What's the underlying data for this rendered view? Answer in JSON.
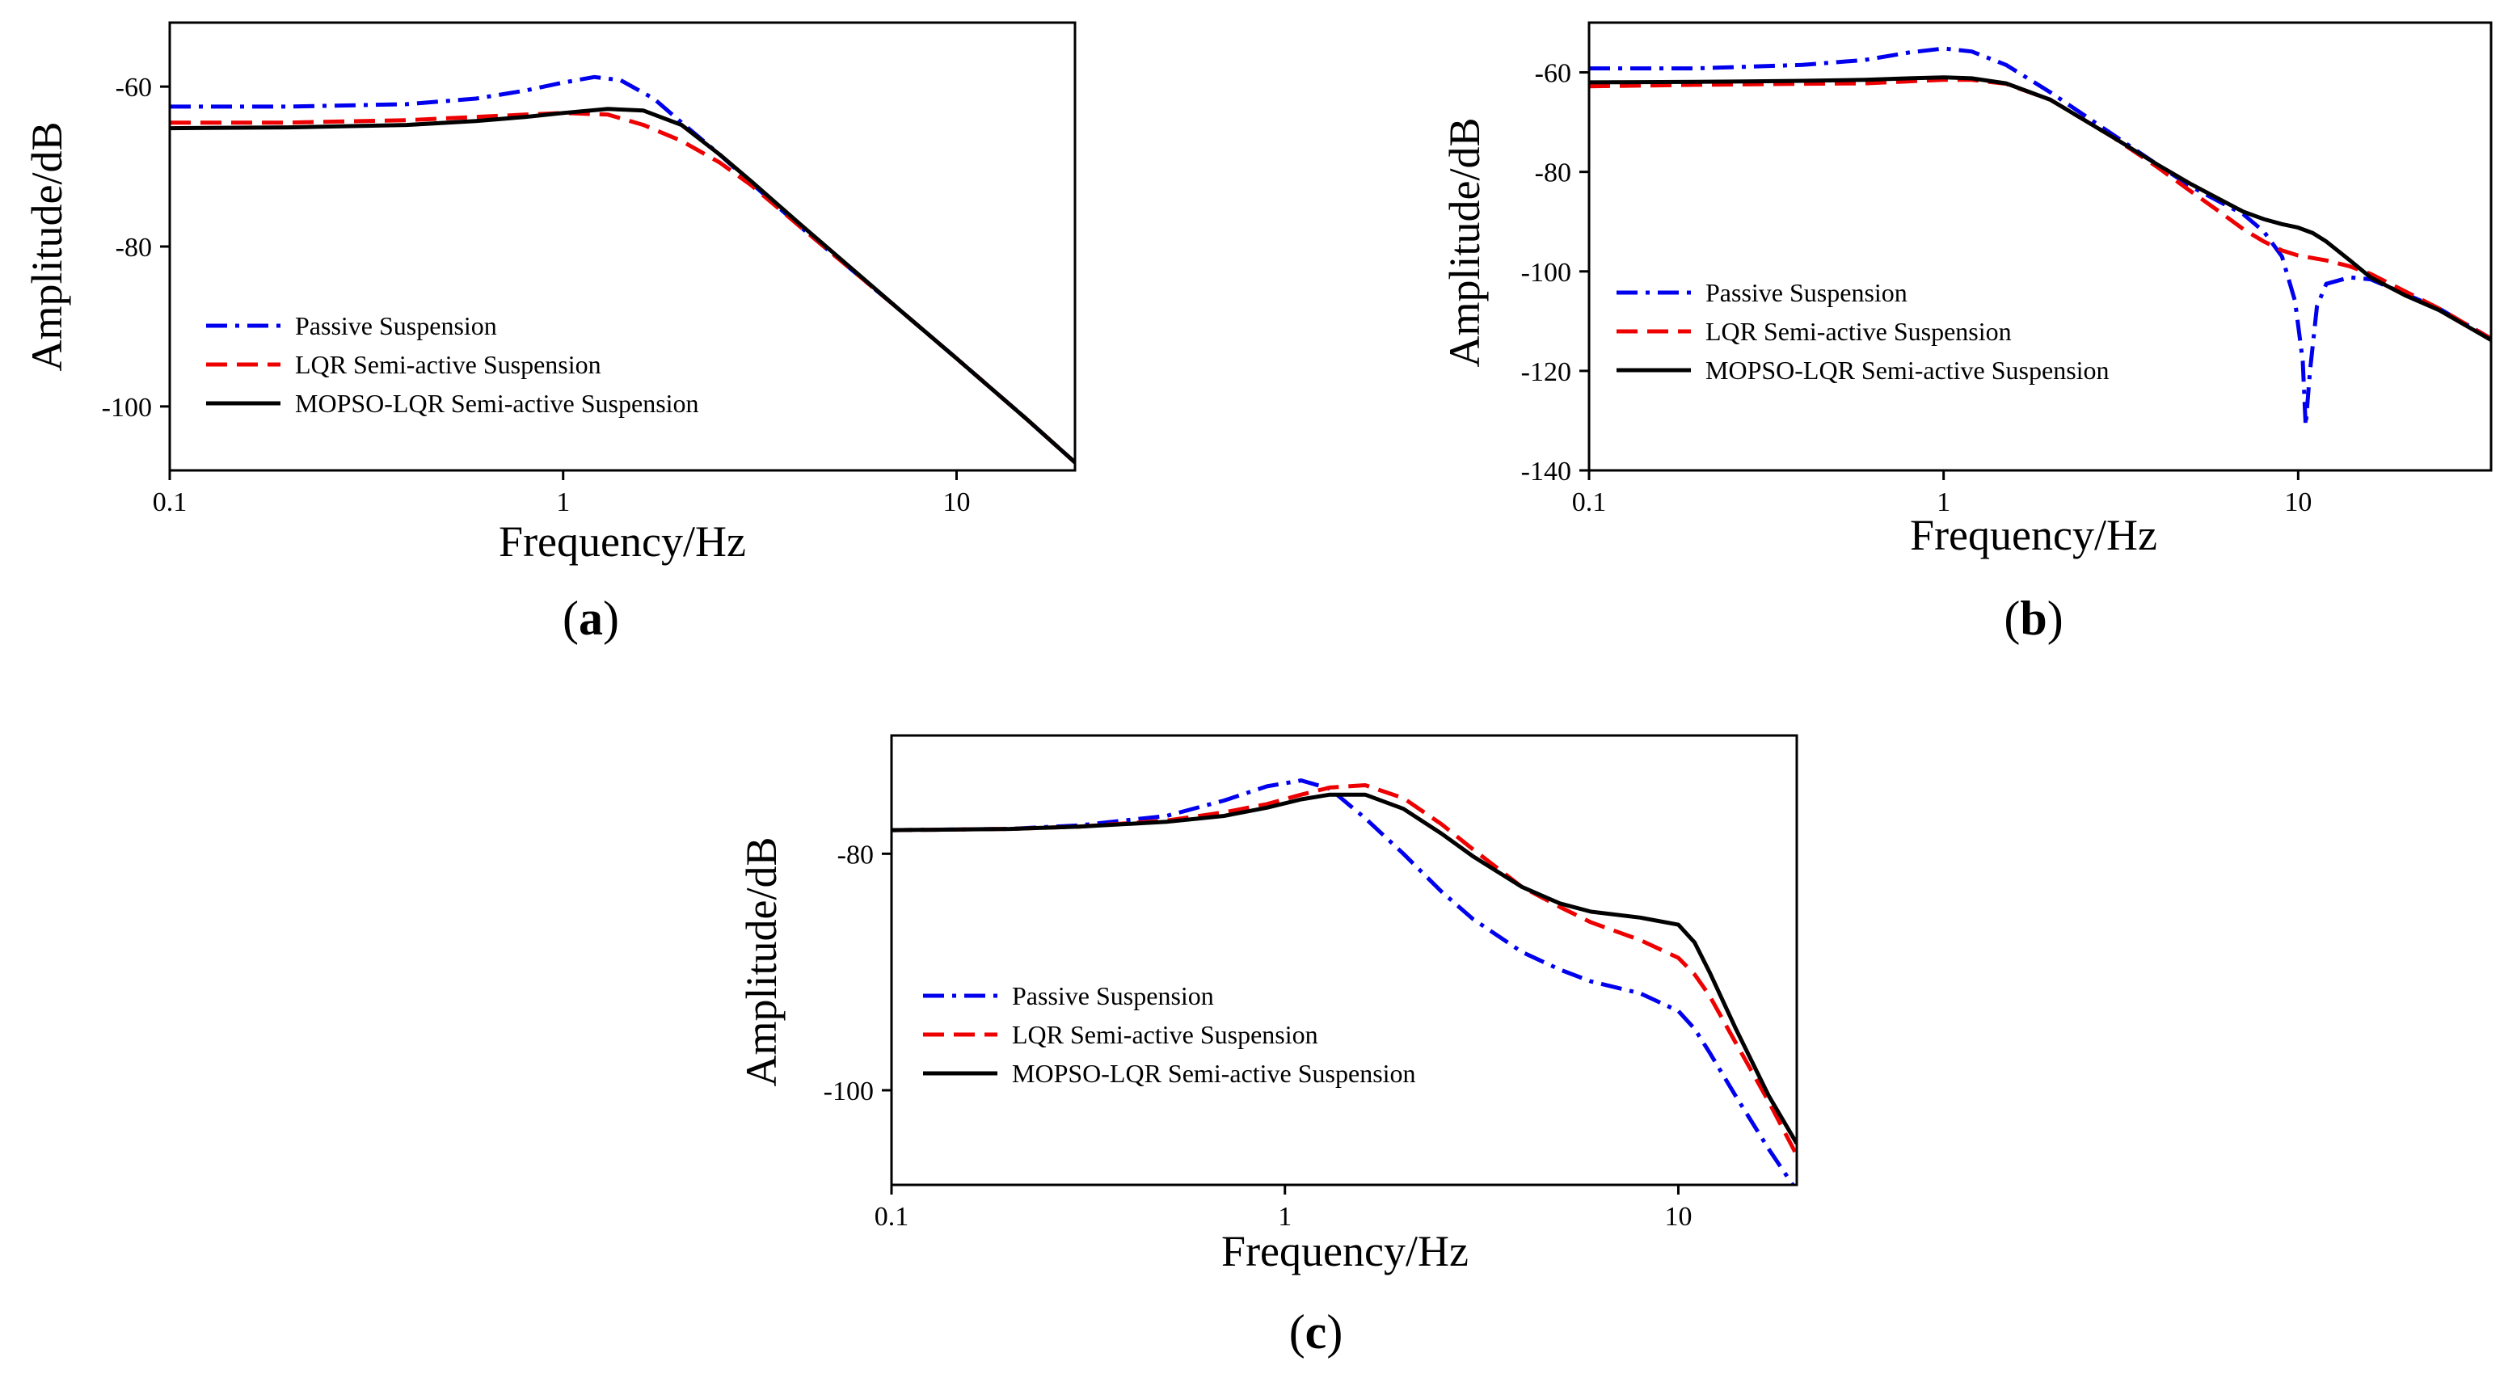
{
  "chart_data": [
    {
      "type": "line",
      "panel_label": "a",
      "xscale": "log",
      "xlim": [
        0.1,
        20
      ],
      "ylim": [
        -108,
        -52
      ],
      "xlabel": "Frequency/Hz",
      "ylabel": "Amplitude/dB",
      "xticks": [
        0.1,
        1,
        10
      ],
      "xtick_labels": [
        "0.1",
        "1",
        "10"
      ],
      "yticks": [
        -100,
        -80,
        -60
      ],
      "ytick_labels": [
        "-100",
        "-80",
        "-60"
      ],
      "legend_position": "bottom-left",
      "series": [
        {
          "name": "Passive Suspension",
          "color": "#0000ee",
          "dash": "dashdot",
          "x": [
            0.1,
            0.2,
            0.4,
            0.6,
            0.8,
            1.0,
            1.2,
            1.4,
            1.7,
            2,
            2.5,
            3,
            4,
            5,
            7,
            10,
            15,
            20
          ],
          "y": [
            -62.5,
            -62.5,
            -62.2,
            -61.5,
            -60.5,
            -59.5,
            -58.8,
            -59.2,
            -61.5,
            -64.5,
            -68.5,
            -72,
            -77.5,
            -81.5,
            -87.5,
            -94,
            -101.5,
            -107
          ]
        },
        {
          "name": "LQR Semi-active Suspension",
          "color": "#ee0000",
          "dash": "dash",
          "x": [
            0.1,
            0.2,
            0.4,
            0.6,
            0.8,
            1.0,
            1.3,
            1.6,
            2,
            2.5,
            3,
            4,
            5,
            7,
            10,
            15,
            20
          ],
          "y": [
            -64.5,
            -64.5,
            -64.2,
            -63.8,
            -63.5,
            -63.3,
            -63.5,
            -64.8,
            -66.8,
            -69.5,
            -72.3,
            -77.5,
            -81.5,
            -87.5,
            -94,
            -101.5,
            -107
          ]
        },
        {
          "name": "MOPSO-LQR Semi-active Suspension",
          "color": "#000000",
          "dash": "solid",
          "x": [
            0.1,
            0.2,
            0.4,
            0.6,
            0.8,
            1.0,
            1.3,
            1.6,
            2,
            2.5,
            3,
            4,
            5,
            7,
            10,
            15,
            20
          ],
          "y": [
            -65.2,
            -65.1,
            -64.8,
            -64.3,
            -63.8,
            -63.3,
            -62.8,
            -63,
            -64.8,
            -68.5,
            -71.8,
            -77.2,
            -81.3,
            -87.5,
            -94,
            -101.5,
            -107
          ]
        }
      ]
    },
    {
      "type": "line",
      "panel_label": "b",
      "xscale": "log",
      "xlim": [
        0.1,
        35
      ],
      "ylim": [
        -140,
        -50
      ],
      "xlabel": "Frequency/Hz",
      "ylabel": "Amplitude/dB",
      "xticks": [
        0.1,
        1,
        10
      ],
      "xtick_labels": [
        "0.1",
        "1",
        "10"
      ],
      "yticks": [
        -140,
        -120,
        -100,
        -80,
        -60
      ],
      "ytick_labels": [
        "-140",
        "-120",
        "-100",
        "-80",
        "-60"
      ],
      "legend_position": "bottom-left",
      "series": [
        {
          "name": "Passive Suspension",
          "color": "#0000ee",
          "dash": "dashdot",
          "x": [
            0.1,
            0.2,
            0.4,
            0.6,
            0.8,
            1.0,
            1.2,
            1.5,
            2,
            3,
            4,
            5,
            6,
            7,
            8,
            9,
            9.8,
            10.3,
            10.5,
            10.8,
            11.3,
            12,
            14,
            16,
            20,
            25,
            35
          ],
          "y": [
            -59.2,
            -59.2,
            -58.5,
            -57.5,
            -56,
            -55.2,
            -55.8,
            -58.5,
            -64,
            -72.5,
            -78.5,
            -83,
            -86,
            -88.5,
            -92,
            -97,
            -106,
            -118,
            -131,
            -120,
            -107,
            -102.5,
            -101.2,
            -101.6,
            -104.5,
            -107.5,
            -113.5
          ]
        },
        {
          "name": "LQR Semi-active Suspension",
          "color": "#ee0000",
          "dash": "dash",
          "x": [
            0.1,
            0.2,
            0.4,
            0.6,
            0.8,
            1.0,
            1.2,
            1.5,
            2,
            3,
            4,
            5,
            6,
            7,
            8,
            9,
            10,
            12,
            14,
            16,
            20,
            25,
            35
          ],
          "y": [
            -62.8,
            -62.5,
            -62.3,
            -62.2,
            -61.8,
            -61.5,
            -61.5,
            -62.3,
            -65.5,
            -73,
            -79,
            -84,
            -88,
            -91.5,
            -94,
            -95.8,
            -96.8,
            -97.8,
            -99,
            -100.5,
            -104,
            -107.5,
            -113.5
          ]
        },
        {
          "name": "MOPSO-LQR Semi-active Suspension",
          "color": "#000000",
          "dash": "solid",
          "x": [
            0.1,
            0.2,
            0.4,
            0.6,
            0.8,
            1.0,
            1.2,
            1.5,
            2,
            3,
            4,
            5,
            6,
            7,
            8,
            9,
            10,
            11,
            12,
            14,
            16,
            20,
            25,
            35
          ],
          "y": [
            -62,
            -61.9,
            -61.7,
            -61.5,
            -61.2,
            -61,
            -61.2,
            -62.2,
            -65.5,
            -73,
            -78.5,
            -82.5,
            -85.5,
            -88,
            -89.5,
            -90.5,
            -91.2,
            -92.3,
            -94,
            -97.8,
            -101.2,
            -104.8,
            -107.8,
            -113.8
          ]
        }
      ]
    },
    {
      "type": "line",
      "panel_label": "c",
      "xscale": "log",
      "xlim": [
        0.1,
        20
      ],
      "ylim": [
        -108,
        -70
      ],
      "xlabel": "Frequency/Hz",
      "ylabel": "Amplitude/dB",
      "xticks": [
        0.1,
        1,
        10
      ],
      "xtick_labels": [
        "0.1",
        "1",
        "10"
      ],
      "yticks": [
        -100,
        -80
      ],
      "ytick_labels": [
        "-100",
        "-80"
      ],
      "legend_position": "bottom-left",
      "series": [
        {
          "name": "Passive Suspension",
          "color": "#0000ee",
          "dash": "dashdot",
          "x": [
            0.1,
            0.2,
            0.3,
            0.5,
            0.7,
            0.9,
            1.1,
            1.3,
            1.6,
            2,
            2.5,
            3,
            4,
            5,
            6,
            8,
            10,
            11,
            12,
            14,
            17,
            20
          ],
          "y": [
            -78,
            -77.9,
            -77.6,
            -76.8,
            -75.5,
            -74.3,
            -73.8,
            -74.5,
            -77,
            -80,
            -83.2,
            -85.5,
            -88.3,
            -89.8,
            -90.8,
            -91.8,
            -93.3,
            -94.8,
            -96.8,
            -100.5,
            -105,
            -108.5
          ]
        },
        {
          "name": "LQR Semi-active Suspension",
          "color": "#ee0000",
          "dash": "dash",
          "x": [
            0.1,
            0.2,
            0.3,
            0.5,
            0.7,
            0.9,
            1.1,
            1.3,
            1.6,
            2,
            2.5,
            3,
            4,
            5,
            6,
            8,
            10,
            11,
            12,
            14,
            17,
            20
          ],
          "y": [
            -78,
            -77.9,
            -77.7,
            -77.2,
            -76.5,
            -75.8,
            -75,
            -74.4,
            -74.2,
            -75.3,
            -77.5,
            -79.6,
            -82.8,
            -84.5,
            -85.8,
            -87.3,
            -88.8,
            -90.2,
            -92,
            -96,
            -101,
            -105.5
          ]
        },
        {
          "name": "MOPSO-LQR Semi-active Suspension",
          "color": "#000000",
          "dash": "solid",
          "x": [
            0.1,
            0.2,
            0.3,
            0.5,
            0.7,
            0.9,
            1.1,
            1.3,
            1.6,
            2,
            2.5,
            3,
            4,
            5,
            6,
            8,
            10,
            11,
            12,
            14,
            17,
            20
          ],
          "y": [
            -78,
            -77.9,
            -77.7,
            -77.3,
            -76.8,
            -76.1,
            -75.4,
            -75,
            -75,
            -76.2,
            -78.3,
            -80.2,
            -82.8,
            -84.2,
            -84.9,
            -85.4,
            -86,
            -87.5,
            -90,
            -94.8,
            -100.5,
            -104.5
          ]
        }
      ]
    }
  ]
}
